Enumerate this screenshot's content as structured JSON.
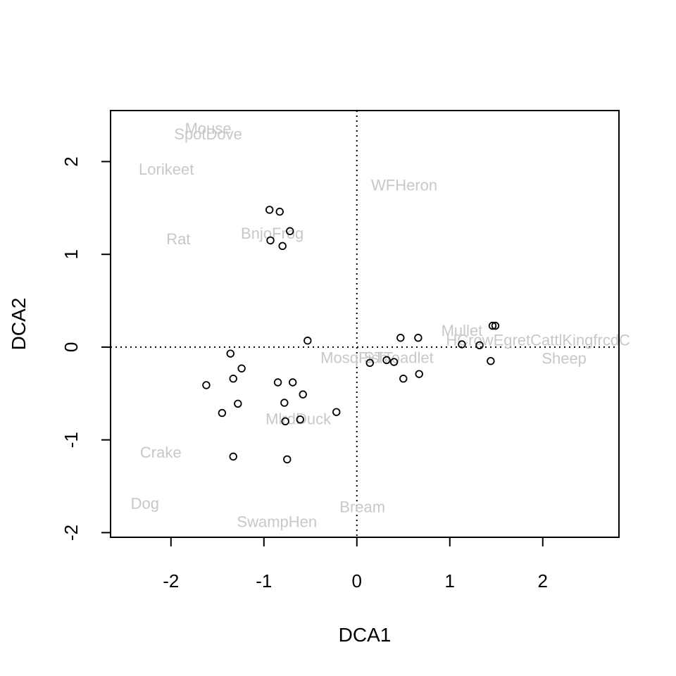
{
  "chart_data": {
    "type": "scatter",
    "xlabel": "DCA1",
    "ylabel": "DCA2",
    "xlim": [
      -2.65,
      2.82
    ],
    "ylim": [
      -2.05,
      2.55
    ],
    "x_ticks": [
      "-2",
      "-1",
      "0",
      "1",
      "2"
    ],
    "y_ticks": [
      "-2",
      "-1",
      "0",
      "1",
      "2"
    ],
    "reference_lines": {
      "x": 0,
      "y": 0,
      "style": "dotted"
    },
    "grid": false,
    "point_color": "#000000",
    "species_label_color": "#c8c8c8",
    "sites": [
      {
        "x": -0.94,
        "y": 1.48
      },
      {
        "x": -0.83,
        "y": 1.46
      },
      {
        "x": -0.72,
        "y": 1.25
      },
      {
        "x": -0.93,
        "y": 1.15
      },
      {
        "x": -0.8,
        "y": 1.09
      },
      {
        "x": -0.53,
        "y": 0.07
      },
      {
        "x": -1.36,
        "y": -0.07
      },
      {
        "x": -1.24,
        "y": -0.23
      },
      {
        "x": -1.33,
        "y": -0.34
      },
      {
        "x": -1.62,
        "y": -0.41
      },
      {
        "x": -0.85,
        "y": -0.38
      },
      {
        "x": -0.69,
        "y": -0.38
      },
      {
        "x": -0.58,
        "y": -0.51
      },
      {
        "x": -1.28,
        "y": -0.61
      },
      {
        "x": -0.78,
        "y": -0.6
      },
      {
        "x": -1.45,
        "y": -0.71
      },
      {
        "x": -0.22,
        "y": -0.7
      },
      {
        "x": -0.61,
        "y": -0.78
      },
      {
        "x": -0.77,
        "y": -0.8
      },
      {
        "x": -1.33,
        "y": -1.18
      },
      {
        "x": -0.75,
        "y": -1.21
      },
      {
        "x": 0.14,
        "y": -0.17
      },
      {
        "x": 0.32,
        "y": -0.14
      },
      {
        "x": 0.4,
        "y": -0.16
      },
      {
        "x": 0.47,
        "y": 0.1
      },
      {
        "x": 0.66,
        "y": 0.1
      },
      {
        "x": 0.5,
        "y": -0.34
      },
      {
        "x": 0.67,
        "y": -0.29
      },
      {
        "x": 1.13,
        "y": 0.03
      },
      {
        "x": 1.32,
        "y": 0.02
      },
      {
        "x": 1.46,
        "y": 0.23
      },
      {
        "x": 1.49,
        "y": 0.23
      },
      {
        "x": 1.44,
        "y": -0.15
      }
    ],
    "species": [
      {
        "label": "Mouse",
        "x": -1.6,
        "y": 2.36
      },
      {
        "label": "SpotDove",
        "x": -1.6,
        "y": 2.3
      },
      {
        "label": "Lorikeet",
        "x": -2.05,
        "y": 1.92
      },
      {
        "label": "WFHeron",
        "x": 0.51,
        "y": 1.75
      },
      {
        "label": "BnjoFrog",
        "x": -0.91,
        "y": 1.23
      },
      {
        "label": "Rat",
        "x": -1.92,
        "y": 1.17
      },
      {
        "label": "Mullet",
        "x": 1.13,
        "y": 0.18
      },
      {
        "label": "HCrowEgretCattlKingfrcdC",
        "x": 1.95,
        "y": 0.08
      },
      {
        "label": "Sheep",
        "x": 2.23,
        "y": -0.12
      },
      {
        "label": "MosqFish",
        "x": -0.03,
        "y": -0.11
      },
      {
        "label": "STToadlet",
        "x": 0.45,
        "y": -0.11
      },
      {
        "label": "MlrdDuck",
        "x": -0.63,
        "y": -0.77
      },
      {
        "label": "Crake",
        "x": -2.11,
        "y": -1.13
      },
      {
        "label": "Dog",
        "x": -2.28,
        "y": -1.68
      },
      {
        "label": "Bream",
        "x": 0.06,
        "y": -1.72
      },
      {
        "label": "SwampHen",
        "x": -0.86,
        "y": -1.88
      }
    ]
  }
}
